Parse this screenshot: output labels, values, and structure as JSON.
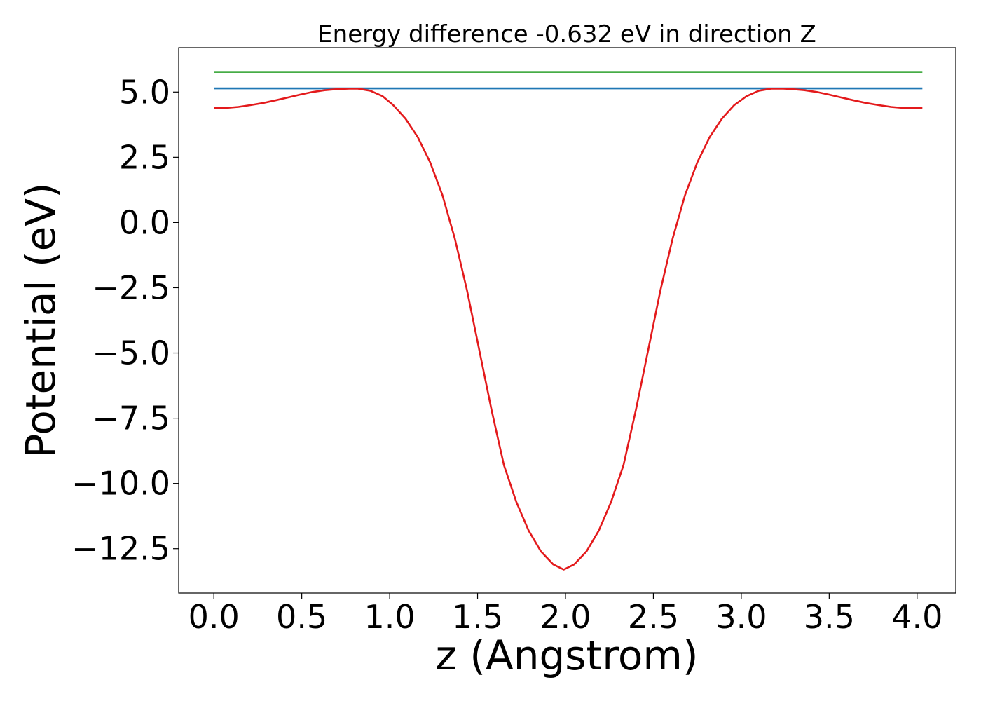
{
  "chart_data": {
    "type": "line",
    "title": "Energy difference -0.632 eV in direction Z",
    "xlabel": "z (Angstrom)",
    "ylabel": "Potential (eV)",
    "xlim": [
      -0.2,
      4.22
    ],
    "ylim": [
      -14.2,
      6.7
    ],
    "xticks": [
      0.0,
      0.5,
      1.0,
      1.5,
      2.0,
      2.5,
      3.0,
      3.5,
      4.0
    ],
    "xtick_labels": [
      "0.0",
      "0.5",
      "1.0",
      "1.5",
      "2.0",
      "2.5",
      "3.0",
      "3.5",
      "4.0"
    ],
    "yticks": [
      -12.5,
      -10.0,
      -7.5,
      -5.0,
      -2.5,
      0.0,
      2.5,
      5.0
    ],
    "ytick_labels": [
      "−12.5",
      "−10.0",
      "−7.5",
      "−5.0",
      "−2.5",
      "0.0",
      "2.5",
      "5.0"
    ],
    "grid": false,
    "series": [
      {
        "color": "#2ca02c",
        "x": [
          0.0,
          4.03
        ],
        "y": [
          5.77,
          5.77
        ]
      },
      {
        "color": "#1f77b4",
        "x": [
          0.0,
          4.03
        ],
        "y": [
          5.14,
          5.14
        ]
      },
      {
        "color": "#e31a1c",
        "x": [
          0.0,
          0.07,
          0.14,
          0.21,
          0.28,
          0.35,
          0.42,
          0.49,
          0.56,
          0.63,
          0.7,
          0.77,
          0.82,
          0.89,
          0.96,
          1.02,
          1.09,
          1.16,
          1.23,
          1.3,
          1.37,
          1.44,
          1.51,
          1.58,
          1.65,
          1.72,
          1.79,
          1.86,
          1.93,
          1.99,
          2.05,
          2.12,
          2.19,
          2.26,
          2.33,
          2.4,
          2.47,
          2.54,
          2.61,
          2.68,
          2.75,
          2.82,
          2.89,
          2.96,
          3.03,
          3.1,
          3.17,
          3.24,
          3.29,
          3.36,
          3.43,
          3.5,
          3.57,
          3.64,
          3.71,
          3.78,
          3.85,
          3.92,
          4.03
        ],
        "y": [
          4.38,
          4.39,
          4.43,
          4.5,
          4.58,
          4.68,
          4.79,
          4.9,
          5.0,
          5.07,
          5.11,
          5.13,
          5.13,
          5.05,
          4.84,
          4.5,
          3.98,
          3.27,
          2.31,
          1.05,
          -0.6,
          -2.6,
          -4.9,
          -7.2,
          -9.3,
          -10.7,
          -11.8,
          -12.6,
          -13.1,
          -13.3,
          -13.1,
          -12.6,
          -11.8,
          -10.7,
          -9.3,
          -7.2,
          -4.9,
          -2.6,
          -0.6,
          1.05,
          2.31,
          3.27,
          3.98,
          4.5,
          4.84,
          5.05,
          5.13,
          5.13,
          5.11,
          5.07,
          5.0,
          4.9,
          4.79,
          4.68,
          4.58,
          4.5,
          4.43,
          4.39,
          4.38
        ]
      }
    ]
  }
}
